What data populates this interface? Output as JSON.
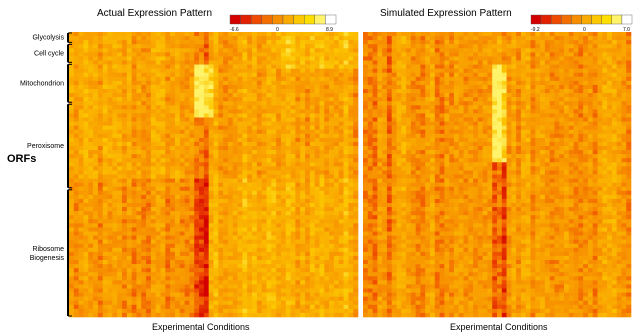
{
  "chart_data": [
    {
      "type": "heatmap",
      "title": "Actual Expression Pattern",
      "colorbar": {
        "min_label": "-6.6",
        "mid_label": "0",
        "max_label": "8.9",
        "min": -6.6,
        "mid": 0,
        "max": 8.9
      },
      "ylabel": "ORFs",
      "xlabel": "Experimental Conditions",
      "row_groups": [
        {
          "label": "Glycolysis",
          "fraction": 0.04
        },
        {
          "label": "Cell cycle",
          "fraction": 0.07
        },
        {
          "label": "Mitochondrion",
          "fraction": 0.14
        },
        {
          "label": "Peroxisome",
          "fraction": 0.3
        },
        {
          "label": "Ribosome\nBiogenesis",
          "fraction": 0.45
        }
      ],
      "colors": [
        "#d40000",
        "#e32000",
        "#ef4a00",
        "#f36e00",
        "#f78d00",
        "#faab00",
        "#fcc800",
        "#fde000",
        "#fef36a",
        "#ffffff"
      ]
    },
    {
      "type": "heatmap",
      "title": "Simulated Expression Pattern",
      "colorbar": {
        "min_label": "-9.2",
        "mid_label": "0",
        "max_label": "7.0",
        "min": -9.2,
        "mid": 0,
        "max": 7.0
      },
      "xlabel": "Experimental Conditions",
      "colors": [
        "#d40000",
        "#e32000",
        "#ef4a00",
        "#f36e00",
        "#f78d00",
        "#faab00",
        "#fcc800",
        "#fde000",
        "#fef36a",
        "#ffffff"
      ]
    }
  ]
}
